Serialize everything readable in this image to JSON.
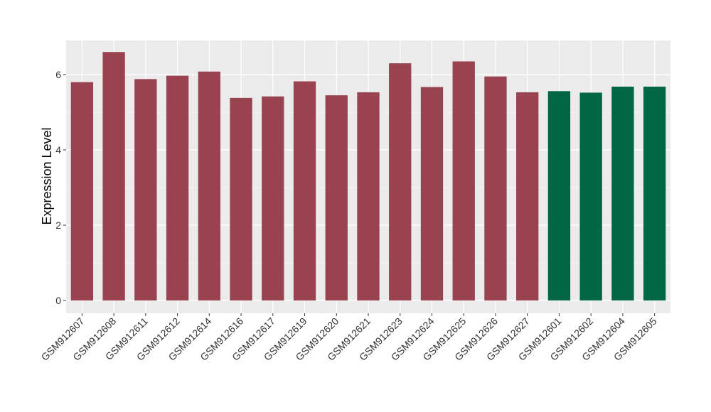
{
  "chart_data": {
    "type": "bar",
    "title": "",
    "xlabel": "",
    "ylabel": "Expression Level",
    "ylim": [
      0,
      6.9
    ],
    "yticks": [
      0,
      2,
      4,
      6
    ],
    "grid": true,
    "legend": "none",
    "categories": [
      "GSM912607",
      "GSM912608",
      "GSM912611",
      "GSM912612",
      "GSM912614",
      "GSM912616",
      "GSM912617",
      "GSM912619",
      "GSM912620",
      "GSM912621",
      "GSM912623",
      "GSM912624",
      "GSM912625",
      "GSM912626",
      "GSM912627",
      "GSM912601",
      "GSM912602",
      "GSM912604",
      "GSM912605"
    ],
    "values": [
      5.8,
      6.6,
      5.88,
      5.97,
      6.08,
      5.38,
      5.42,
      5.82,
      5.45,
      5.53,
      6.3,
      5.67,
      6.35,
      5.95,
      5.53,
      5.56,
      5.52,
      5.68,
      5.68
    ],
    "groups": [
      "a",
      "a",
      "a",
      "a",
      "a",
      "a",
      "a",
      "a",
      "a",
      "a",
      "a",
      "a",
      "a",
      "a",
      "a",
      "b",
      "b",
      "b",
      "b"
    ],
    "group_colors": {
      "a": "#9a4350",
      "b": "#006644"
    },
    "panel_background": "#ebebeb",
    "grid_color": "#ffffff"
  }
}
